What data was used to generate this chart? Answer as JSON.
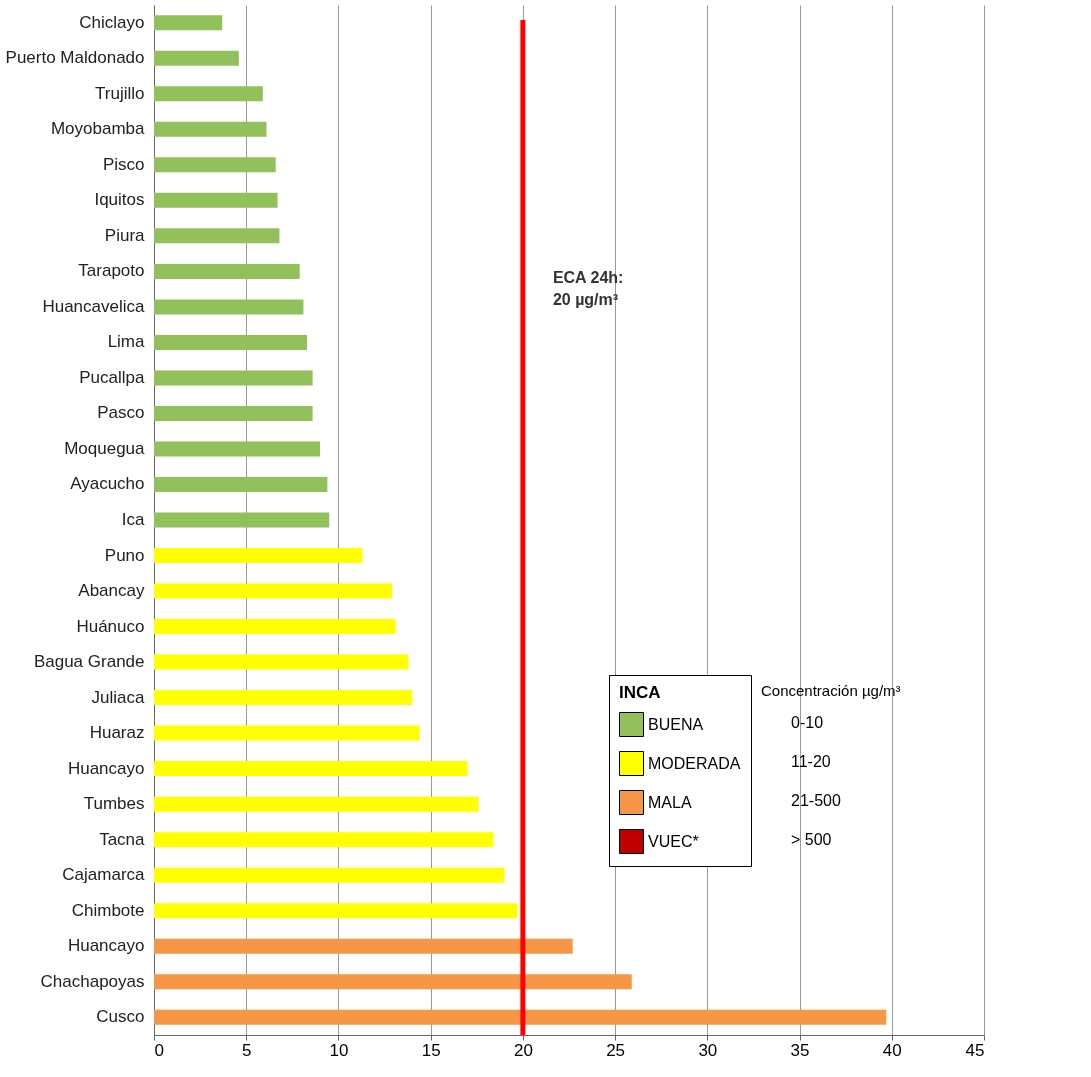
{
  "chart_data": {
    "type": "bar",
    "orientation": "horizontal",
    "categories": [
      "Chiclayo",
      "Puerto Maldonado",
      "Trujillo",
      "Moyobamba",
      "Pisco",
      "Iquitos",
      "Piura",
      "Tarapoto",
      "Huancavelica",
      "Lima",
      "Pucallpa",
      "Pasco",
      "Moquegua",
      "Ayacucho",
      "Ica",
      "Puno",
      "Abancay",
      "Huánuco",
      "Bagua Grande",
      "Juliaca",
      "Huaraz",
      "Huancayo",
      "Tumbes",
      "Tacna",
      "Cajamarca",
      "Chimbote",
      "Huancayo",
      "Chachapoyas",
      "Cusco"
    ],
    "series": [
      {
        "name": "BUENA",
        "color": "#92c05a",
        "values": [
          3.7,
          4.6,
          5.9,
          6.1,
          6.6,
          6.7,
          6.8,
          7.9,
          8.1,
          8.3,
          8.6,
          8.6,
          9.0,
          9.4,
          9.5,
          null,
          null,
          null,
          null,
          null,
          null,
          null,
          null,
          null,
          null,
          null,
          null,
          null,
          null
        ]
      },
      {
        "name": "MODERADA",
        "color": "#ffff00",
        "values": [
          null,
          null,
          null,
          null,
          null,
          null,
          null,
          null,
          null,
          null,
          null,
          null,
          null,
          null,
          null,
          11.3,
          12.9,
          13.1,
          13.8,
          14.0,
          14.4,
          17.0,
          17.6,
          18.4,
          19.0,
          19.7,
          null,
          null,
          null
        ]
      },
      {
        "name": "MALA",
        "color": "#f79646",
        "values": [
          null,
          null,
          null,
          null,
          null,
          null,
          null,
          null,
          null,
          null,
          null,
          null,
          null,
          null,
          null,
          null,
          null,
          null,
          null,
          null,
          null,
          null,
          null,
          null,
          null,
          null,
          22.7,
          25.9,
          39.7
        ]
      },
      {
        "name": "VUEC*",
        "color": "#c00000",
        "values": [
          null,
          null,
          null,
          null,
          null,
          null,
          null,
          null,
          null,
          null,
          null,
          null,
          null,
          null,
          null,
          null,
          null,
          null,
          null,
          null,
          null,
          null,
          null,
          null,
          null,
          null,
          null,
          null,
          null
        ]
      }
    ],
    "legend_title": "INCA",
    "legend": "bottom right",
    "annotations": [
      "Concentración µg/m³",
      "0-10",
      "11-20",
      "21-500",
      "> 500"
    ],
    "xlim": [
      0,
      45
    ],
    "xticks": [
      0,
      5,
      10,
      15,
      20,
      25,
      30,
      35,
      40,
      45
    ],
    "grid": "x",
    "ref_lines": [
      {
        "axis": "x",
        "value": 20,
        "label": "ECA 24h:\n20 µg/m³",
        "color": "#ff0000"
      }
    ]
  }
}
